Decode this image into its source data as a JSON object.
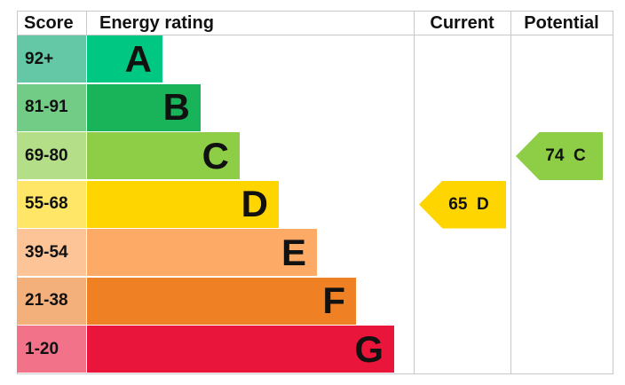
{
  "chart_data": {
    "type": "bar",
    "headers": {
      "score": "Score",
      "rating": "Energy rating",
      "current": "Current",
      "potential": "Potential"
    },
    "bands": [
      {
        "letter": "A",
        "range": "92+",
        "color": "#00c781",
        "score_color": "#64c8a6"
      },
      {
        "letter": "B",
        "range": "81-91",
        "color": "#19b459",
        "score_color": "#72cc86"
      },
      {
        "letter": "C",
        "range": "69-80",
        "color": "#8dce46",
        "score_color": "#b4de87"
      },
      {
        "letter": "D",
        "range": "55-68",
        "color": "#ffd500",
        "score_color": "#ffe666"
      },
      {
        "letter": "E",
        "range": "39-54",
        "color": "#fcaa65",
        "score_color": "#fdc498"
      },
      {
        "letter": "F",
        "range": "21-38",
        "color": "#ef8023",
        "score_color": "#f4b07b"
      },
      {
        "letter": "G",
        "range": "1-20",
        "color": "#e9153b",
        "score_color": "#f27389"
      }
    ],
    "current": {
      "value": 65,
      "letter": "D",
      "label": "65  D",
      "color": "#ffd500"
    },
    "potential": {
      "value": 74,
      "letter": "C",
      "label": "74  C",
      "color": "#8dce46"
    }
  }
}
